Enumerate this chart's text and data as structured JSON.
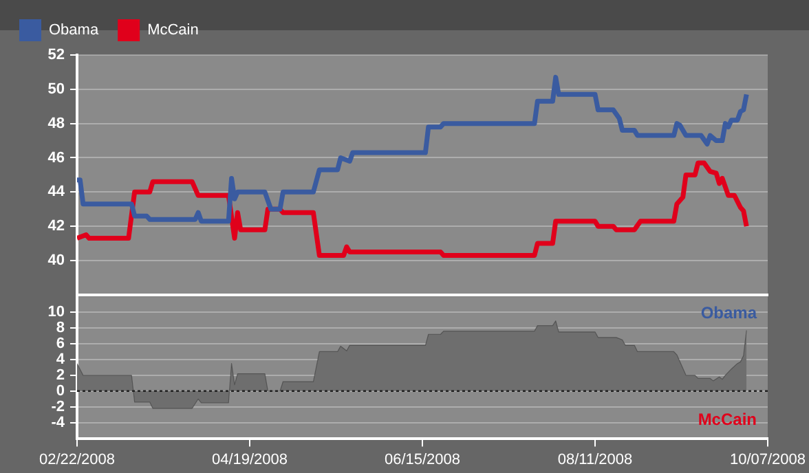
{
  "chart_data": [
    {
      "type": "line",
      "tick_labels": "y",
      "grid": "y",
      "legend": "top left",
      "marker": "none",
      "xlim": [
        "2008-02-22",
        "2008-10-07"
      ],
      "ylim": [
        38,
        52
      ],
      "yticks": [
        40,
        42,
        44,
        46,
        48,
        50,
        52
      ],
      "series": [
        {
          "name": "Obama",
          "color": "#3a5ba0",
          "x": [
            "2008-02-22",
            "2008-02-23",
            "2008-02-24",
            "2008-03-11",
            "2008-03-12",
            "2008-03-16",
            "2008-03-17",
            "2008-04-01",
            "2008-04-02",
            "2008-04-03",
            "2008-04-12",
            "2008-04-13",
            "2008-04-14",
            "2008-04-15",
            "2008-04-24",
            "2008-04-26",
            "2008-04-29",
            "2008-04-30",
            "2008-05-10",
            "2008-05-12",
            "2008-05-18",
            "2008-05-19",
            "2008-05-22",
            "2008-05-23",
            "2008-06-16",
            "2008-06-17",
            "2008-06-21",
            "2008-06-22",
            "2008-07-22",
            "2008-07-23",
            "2008-07-28",
            "2008-07-29",
            "2008-07-30",
            "2008-08-11",
            "2008-08-12",
            "2008-08-17",
            "2008-08-19",
            "2008-08-20",
            "2008-08-24",
            "2008-08-25",
            "2008-09-06",
            "2008-09-07",
            "2008-09-08",
            "2008-09-10",
            "2008-09-15",
            "2008-09-17",
            "2008-09-18",
            "2008-09-20",
            "2008-09-22",
            "2008-09-23",
            "2008-09-24",
            "2008-09-25",
            "2008-09-27",
            "2008-09-28",
            "2008-09-29",
            "2008-09-30"
          ],
          "values": [
            44.7,
            44.7,
            43.3,
            43.3,
            42.6,
            42.6,
            42.4,
            42.4,
            42.8,
            42.3,
            42.3,
            44.8,
            43.6,
            44.0,
            44.0,
            43.0,
            43.0,
            44.0,
            44.0,
            45.3,
            45.3,
            46.0,
            45.8,
            46.3,
            46.3,
            47.8,
            47.8,
            48.0,
            48.0,
            49.3,
            49.3,
            50.7,
            49.7,
            49.7,
            48.8,
            48.8,
            48.3,
            47.6,
            47.6,
            47.3,
            47.3,
            48.0,
            47.9,
            47.3,
            47.3,
            46.8,
            47.3,
            47.0,
            47.0,
            48.0,
            47.8,
            48.2,
            48.2,
            48.7,
            48.8,
            49.7
          ]
        },
        {
          "name": "McCain",
          "color": "#e0001b",
          "x": [
            "2008-02-22",
            "2008-02-25",
            "2008-02-26",
            "2008-03-10",
            "2008-03-12",
            "2008-03-17",
            "2008-03-18",
            "2008-03-31",
            "2008-04-02",
            "2008-04-12",
            "2008-04-14",
            "2008-04-15",
            "2008-04-16",
            "2008-04-24",
            "2008-04-25",
            "2008-04-29",
            "2008-04-30",
            "2008-05-10",
            "2008-05-12",
            "2008-05-20",
            "2008-05-21",
            "2008-05-22",
            "2008-06-21",
            "2008-06-22",
            "2008-07-22",
            "2008-07-23",
            "2008-07-28",
            "2008-07-29",
            "2008-08-11",
            "2008-08-12",
            "2008-08-17",
            "2008-08-18",
            "2008-08-24",
            "2008-08-26",
            "2008-09-06",
            "2008-09-07",
            "2008-09-09",
            "2008-09-10",
            "2008-09-13",
            "2008-09-14",
            "2008-09-16",
            "2008-09-18",
            "2008-09-20",
            "2008-09-21",
            "2008-09-22",
            "2008-09-24",
            "2008-09-26",
            "2008-09-28",
            "2008-09-29",
            "2008-09-30"
          ],
          "values": [
            41.3,
            41.5,
            41.3,
            41.3,
            44.0,
            44.0,
            44.6,
            44.6,
            43.8,
            43.8,
            41.3,
            42.8,
            41.8,
            41.8,
            43.0,
            43.0,
            42.8,
            42.8,
            40.3,
            40.3,
            40.8,
            40.5,
            40.5,
            40.3,
            40.3,
            41.0,
            41.0,
            42.3,
            42.3,
            42.0,
            42.0,
            41.8,
            41.8,
            42.3,
            42.3,
            43.3,
            43.7,
            45.0,
            45.0,
            45.7,
            45.7,
            45.2,
            45.1,
            44.5,
            44.8,
            43.8,
            43.8,
            43.1,
            42.9,
            42.0
          ]
        }
      ]
    },
    {
      "type": "area",
      "grid": "y",
      "marker": "none",
      "xlim": [
        "2008-02-22",
        "2008-10-07"
      ],
      "xticks": [
        {
          "value": "2008-02-22",
          "label": "02/22/2008"
        },
        {
          "value": "2008-04-19",
          "label": "04/19/2008"
        },
        {
          "value": "2008-06-15",
          "label": "06/15/2008"
        },
        {
          "value": "2008-08-11",
          "label": "08/11/2008"
        },
        {
          "value": "2008-10-07",
          "label": "10/07/2008"
        }
      ],
      "ylim": [
        -6,
        12
      ],
      "yticks": [
        -4,
        -2,
        0,
        2,
        4,
        6,
        8,
        10
      ],
      "ref_lines": [
        {
          "axis": "y",
          "value": 0,
          "color": "#222222",
          "line_style": "dotted"
        }
      ],
      "annotations": [
        "Obama",
        "McCain"
      ],
      "series": [
        {
          "color": "#6e6e6e",
          "x": [
            "2008-02-22",
            "2008-02-24",
            "2008-03-11",
            "2008-03-12",
            "2008-03-17",
            "2008-03-18",
            "2008-03-31",
            "2008-04-02",
            "2008-04-03",
            "2008-04-12",
            "2008-04-13",
            "2008-04-14",
            "2008-04-15",
            "2008-04-24",
            "2008-04-25",
            "2008-04-29",
            "2008-04-30",
            "2008-05-10",
            "2008-05-12",
            "2008-05-18",
            "2008-05-19",
            "2008-05-21",
            "2008-05-22",
            "2008-06-16",
            "2008-06-17",
            "2008-06-21",
            "2008-06-22",
            "2008-07-22",
            "2008-07-23",
            "2008-07-28",
            "2008-07-29",
            "2008-07-30",
            "2008-08-11",
            "2008-08-12",
            "2008-08-18",
            "2008-08-20",
            "2008-08-21",
            "2008-08-24",
            "2008-08-25",
            "2008-09-06",
            "2008-09-07",
            "2008-09-10",
            "2008-09-13",
            "2008-09-14",
            "2008-09-18",
            "2008-09-19",
            "2008-09-21",
            "2008-09-22",
            "2008-09-23",
            "2008-09-25",
            "2008-09-27",
            "2008-09-28",
            "2008-09-29",
            "2008-09-30"
          ],
          "values": [
            3.5,
            2.0,
            2.0,
            -1.4,
            -1.4,
            -2.2,
            -2.2,
            -1.0,
            -1.5,
            -1.5,
            3.5,
            0.8,
            2.2,
            2.2,
            0,
            0,
            1.2,
            1.2,
            5.0,
            5.0,
            5.7,
            5.1,
            5.8,
            5.8,
            7.2,
            7.2,
            7.6,
            7.6,
            8.3,
            8.3,
            8.9,
            7.5,
            7.5,
            6.8,
            6.8,
            6.5,
            5.8,
            5.8,
            5.0,
            5.0,
            4.6,
            2.0,
            2.0,
            1.6,
            1.6,
            1.3,
            1.8,
            1.5,
            2.0,
            2.8,
            3.5,
            3.7,
            4.5,
            7.7
          ]
        }
      ]
    }
  ]
}
